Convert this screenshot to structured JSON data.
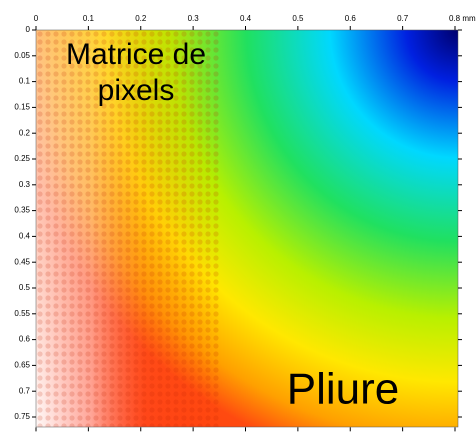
{
  "chart_data": {
    "type": "heatmap",
    "xlim": [
      0,
      0.8
    ],
    "xticks": [
      0,
      0.1,
      0.2,
      0.3,
      0.4,
      0.5,
      0.6,
      0.7,
      {
        "value": 0.8,
        "label": "0.8 mm"
      }
    ],
    "ylim": [
      0,
      0.77
    ],
    "yticks": [
      0,
      0.05,
      0.1,
      0.15,
      0.2,
      0.25,
      0.3,
      0.35,
      0.4,
      0.45,
      0.5,
      0.55,
      0.6,
      0.65,
      0.7,
      0.75
    ],
    "annotations": [
      "Matrice de",
      "pixels",
      "Pliure"
    ]
  }
}
